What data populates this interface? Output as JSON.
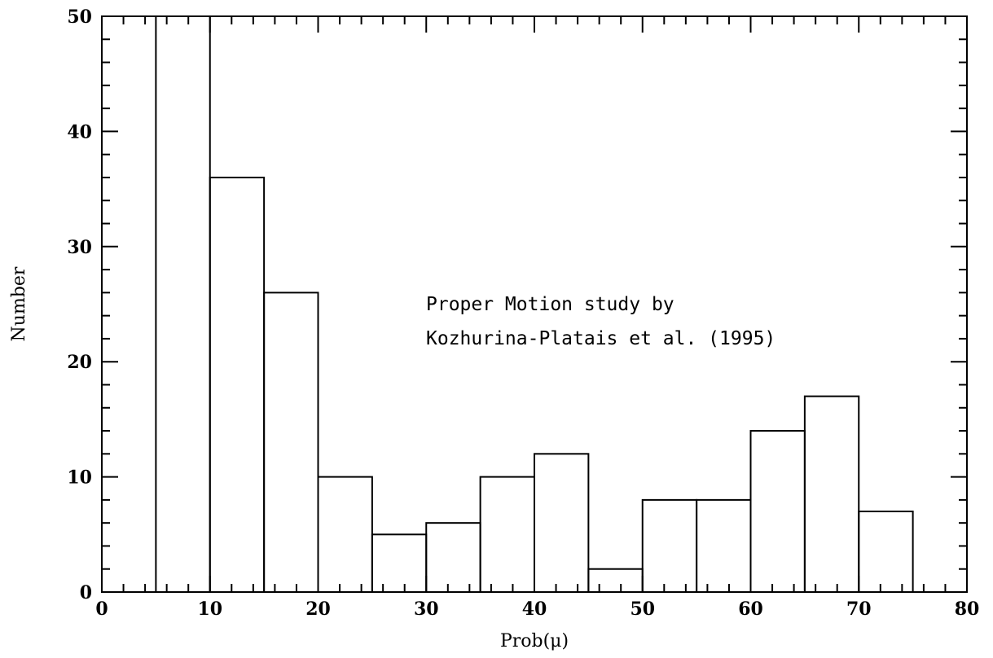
{
  "chart_data": {
    "type": "bar",
    "subtype": "histogram",
    "xlabel": "Prob(μ)",
    "ylabel": "Number",
    "xlim": [
      0,
      80
    ],
    "ylim": [
      0,
      50
    ],
    "x_ticks": [
      "0",
      "10",
      "20",
      "30",
      "40",
      "50",
      "60",
      "70",
      "80"
    ],
    "y_ticks": [
      "0",
      "10",
      "20",
      "30",
      "40",
      "50"
    ],
    "bin_width": 5,
    "bins": [
      {
        "x0": 5,
        "x1": 10,
        "value": 50
      },
      {
        "x0": 10,
        "x1": 15,
        "value": 36
      },
      {
        "x0": 15,
        "x1": 20,
        "value": 26
      },
      {
        "x0": 20,
        "x1": 25,
        "value": 10
      },
      {
        "x0": 25,
        "x1": 30,
        "value": 5
      },
      {
        "x0": 30,
        "x1": 35,
        "value": 6
      },
      {
        "x0": 35,
        "x1": 40,
        "value": 10
      },
      {
        "x0": 40,
        "x1": 45,
        "value": 12
      },
      {
        "x0": 45,
        "x1": 50,
        "value": 2
      },
      {
        "x0": 50,
        "x1": 55,
        "value": 8
      },
      {
        "x0": 55,
        "x1": 60,
        "value": 8
      },
      {
        "x0": 60,
        "x1": 65,
        "value": 14
      },
      {
        "x0": 65,
        "x1": 70,
        "value": 17
      },
      {
        "x0": 70,
        "x1": 75,
        "value": 7
      }
    ],
    "annotation": [
      "Proper Motion study by",
      "Kozhurina-Platais et al. (1995)"
    ],
    "grid": false,
    "legend": "none"
  }
}
